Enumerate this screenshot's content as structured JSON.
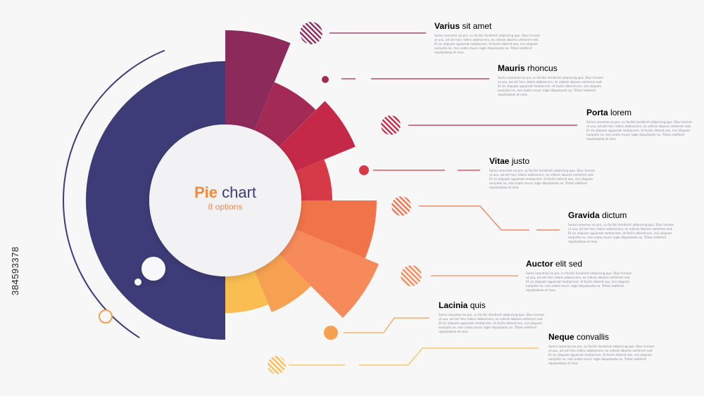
{
  "center": {
    "title_bold": "Pie",
    "title_rest": "chart",
    "subtitle": "8 options"
  },
  "stock_id": "384593378",
  "items": [
    {
      "bold": "Varius",
      "rest": "sit amet",
      "color": "#8c2a5c",
      "text": "Sumo nonumes ea pro, cu facilisi hendrerit adipiscing quo. Stuci lorrare ut usu, ad est hinc ridens adolescens, ex vidisse lobores verterem sed. Et vis aliquam appareat mediocrem. Id facilis delenit eos, nisi aliquam euripidis ne, mei oratio mucci nigle disputando no. Tritani eleifend reputanbiae et mea."
    },
    {
      "bold": "Mauris",
      "rest": "rhoncus",
      "color": "#a32a55",
      "text": "Sumo nonumes ea pro, cu facilisi hendrerit adipiscing quo. Stuci lorrare ut usu, ad est hinc ridens adolescens, ex vidisse lobores verterem sed. Et vis aliquam appareat mediocrem. Id facilis delenit eos, nisi aliquam euripidis ne, mei oratio mucci nigle disputando no. Tritani eleifend reputanbiae et mea."
    },
    {
      "bold": "Porta",
      "rest": "lorem",
      "color": "#c42a48",
      "text": "Sumo nonumes ea pro, cu facilisi hendrerit adipiscing quo. Stuci lorrare ut usu, ad est hinc ridens adolescens, ex vidisse lobores verterem sed. Et vis aliquam appareat mediocrem. Id facilis delenit eos, nisi aliquam euripidis ne, mei oratio mucci nigle disputando no. Tritani eleifend reputanbiae et mea."
    },
    {
      "bold": "Vitae",
      "rest": "justo",
      "color": "#d63a46",
      "text": "Sumo nonumes ea pro, cu facilisi hendrerit adipiscing quo. Stuci lorrare ut usu, ad est hinc ridens adolescens, ex vidisse lobores verterem sed. Et vis aliquam appareat mediocrem. Id facilis delenit eos, nisi aliquam euripidis ne, mei oratio mucci nigle disputando no. Tritani eleifend reputanbiae et mea."
    },
    {
      "bold": "Gravida",
      "rest": "dictum",
      "color": "#f0734a",
      "text": "Sumo nonumes ea pro, cu facilisi hendrerit adipiscing quo. Stuci lorrare ut usu, ad est hinc ridens adolescens, ex vidisse lobores verterem sed. Et vis aliquam appareat mediocrem. Id facilis delenit eos, nisi aliquam euripidis ne, mei oratio mucci nigle disputando no. Tritani eleifend reputanbiae et mea."
    },
    {
      "bold": "Auctor",
      "rest": "elit sed",
      "color": "#f68a5a",
      "text": "Sumo nonumes ea pro, cu facilisi hendrerit adipiscing quo. Stuci lorrare ut usu, ad est hinc ridens adolescens, ex vidisse lobores verterem sed. Et vis aliquam appareat mediocrem. Id facilis delenit eos, nisi aliquam euripidis ne, mei oratio mucci nigle disputando no. Tritani eleifend reputanbiae et mea."
    },
    {
      "bold": "Lacinia",
      "rest": "quis",
      "color": "#f7a052",
      "text": "Sumo nonumes ea pro, cu facilisi hendrerit adipiscing quo. Stuci lorrare ut usu, ad est hinc ridens adolescens, ex vidisse lobores verterem sed. Et vis aliquam appareat mediocrem. Id facilis delenit eos, nisi aliquam euripidis ne, mei oratio mucci nigle disputando no. Tritani eleifend reputanbiae et mea."
    },
    {
      "bold": "Neque",
      "rest": "convallis",
      "color": "#f9bd52",
      "text": "Sumo nonumes ea pro, cu facilisi hendrerit adipiscing quo. Stuci lorrare ut usu, ad est hinc ridens adolescens, ex vidisse lobores verterem sed. Et vis aliquam appareat mediocrem. Id facilis delenit eos, nisi aliquam euripidis ne, mei oratio mucci nigle disputando no. Tritani eleifend reputanbiae et mea."
    }
  ],
  "colors": {
    "base_ring": "#3e3c78",
    "accent_line": "#3e3c78",
    "center_fill": "#f2f2f4"
  }
}
